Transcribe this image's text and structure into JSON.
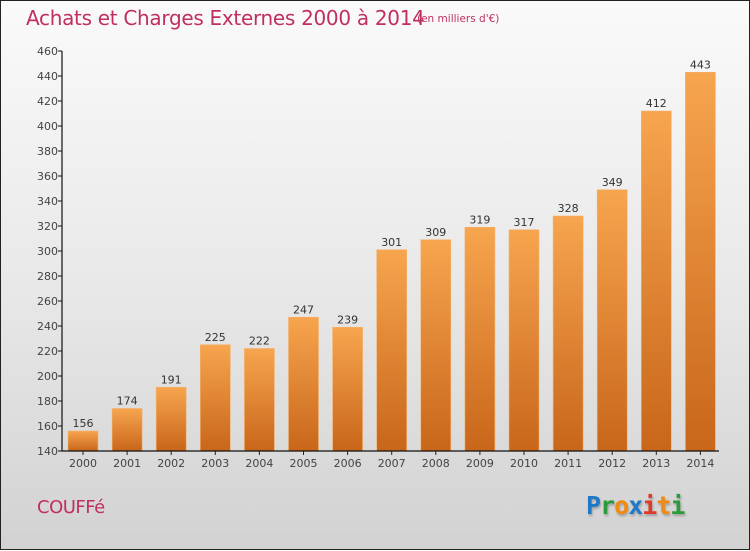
{
  "chart_data": {
    "type": "bar",
    "title": "Achats et Charges Externes 2000 à 2014",
    "subtitle": "(en milliers d'€)",
    "xlabel": "",
    "ylabel": "",
    "categories": [
      "2000",
      "2001",
      "2002",
      "2003",
      "2004",
      "2005",
      "2006",
      "2007",
      "2008",
      "2009",
      "2010",
      "2011",
      "2012",
      "2013",
      "2014"
    ],
    "values": [
      156,
      174,
      191,
      225,
      222,
      247,
      239,
      301,
      309,
      319,
      317,
      328,
      349,
      412,
      443
    ],
    "ylim": [
      140,
      460
    ],
    "yticks": [
      140,
      160,
      180,
      200,
      220,
      240,
      260,
      280,
      300,
      320,
      340,
      360,
      380,
      400,
      420,
      440,
      460
    ],
    "grid": false,
    "legend": "none",
    "bar_color_top": "#f7a54f",
    "bar_color_bottom": "#c8661a"
  },
  "footer": {
    "commune": "COUFFé",
    "logo_letters": [
      {
        "ch": "P",
        "color": "#1f78c8"
      },
      {
        "ch": "r",
        "color": "#2a9a3a"
      },
      {
        "ch": "o",
        "color": "#f08a12"
      },
      {
        "ch": "x",
        "color": "#1f78c8"
      },
      {
        "ch": "i",
        "color": "#e03a2a"
      },
      {
        "ch": "t",
        "color": "#f08a12"
      },
      {
        "ch": "i",
        "color": "#2a9a3a"
      }
    ]
  },
  "colors": {
    "title": "#c0305f"
  }
}
